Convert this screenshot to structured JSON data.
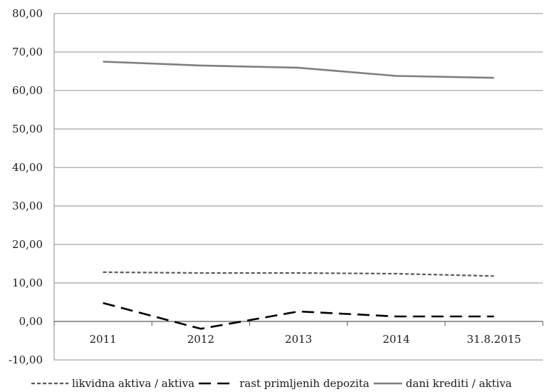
{
  "chart_data": {
    "type": "line",
    "categories": [
      "2011",
      "2012",
      "2013",
      "2014",
      "31.8.2015"
    ],
    "series": [
      {
        "name": "likvidna aktiva / aktiva",
        "values": [
          12.8,
          12.6,
          12.6,
          12.4,
          11.8
        ],
        "color": "#595959",
        "dash": "dotted"
      },
      {
        "name": "rast primljenih depozita",
        "values": [
          4.8,
          -1.9,
          2.6,
          1.3,
          1.3
        ],
        "color": "#000000",
        "dash": "long-dash"
      },
      {
        "name": "dani krediti / aktiva",
        "values": [
          67.5,
          66.5,
          65.9,
          63.8,
          63.3
        ],
        "color": "#7f7f7f",
        "dash": "solid"
      }
    ],
    "y_ticks": [
      "80,00",
      "70,00",
      "60,00",
      "50,00",
      "40,00",
      "30,00",
      "20,00",
      "10,00",
      "0,00",
      "-10,00"
    ],
    "ylim": [
      -10,
      80
    ],
    "grid": true,
    "legend_position": "bottom"
  }
}
